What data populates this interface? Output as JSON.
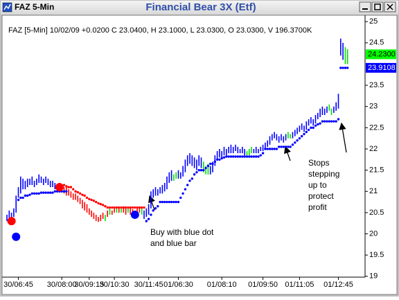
{
  "window_title": "FAZ 5-Min",
  "chart_data": {
    "type": "ohlc",
    "title": "Financial Bear 3X (Etf)",
    "subtitle": "FAZ [5-Min] 10/02/09 +0.0200 C 23.0400, H 23.1000, L 23.0300, O 23.0300, V 196.3700K",
    "categories": [
      null,
      null,
      null,
      null,
      null,
      "30/06:45",
      null,
      null,
      null,
      null,
      null,
      null,
      null,
      null,
      null,
      null,
      null,
      null,
      null,
      null,
      null,
      null,
      null,
      null,
      "30/08:00",
      null,
      null,
      null,
      null,
      null,
      null,
      null,
      null,
      null,
      null,
      null,
      "30/09:15",
      null,
      null,
      null,
      null,
      null,
      null,
      null,
      null,
      null,
      null,
      "30/10:30",
      null,
      null,
      null,
      null,
      null,
      null,
      null,
      null,
      null,
      null,
      null,
      null,
      null,
      null,
      "30/11:45",
      null,
      null,
      null,
      null,
      null,
      null,
      null,
      null,
      null,
      null,
      null,
      null,
      "01/06:30",
      null,
      null,
      null,
      null,
      null,
      null,
      null,
      null,
      null,
      null,
      null,
      null,
      null,
      null,
      null,
      null,
      null,
      null,
      "01/08:10",
      null,
      null,
      null,
      null,
      null,
      null,
      null,
      null,
      null,
      null,
      null,
      null,
      null,
      null,
      null,
      null,
      null,
      "01/09:50",
      null,
      null,
      null,
      null,
      null,
      null,
      null,
      null,
      null,
      null,
      null,
      null,
      null,
      null,
      null,
      "01/11:05",
      null,
      null,
      null,
      null,
      null,
      null,
      null,
      null,
      null,
      null,
      null,
      null,
      null,
      null,
      null,
      null,
      "01/12:45",
      null,
      null,
      null,
      null
    ],
    "high": [
      20.45,
      20.55,
      20.5,
      20.6,
      20.9,
      21.1,
      21.35,
      21.3,
      21.25,
      21.3,
      21.3,
      21.35,
      21.25,
      21.3,
      21.4,
      21.35,
      21.3,
      21.35,
      21.3,
      21.25,
      21.25,
      21.2,
      21.15,
      21.2,
      21.15,
      21.1,
      21.1,
      21.05,
      21,
      20.95,
      20.95,
      20.9,
      20.85,
      20.8,
      20.75,
      20.7,
      20.6,
      20.55,
      20.5,
      20.45,
      20.4,
      20.45,
      20.5,
      20.45,
      20.55,
      20.6,
      20.55,
      20.6,
      20.6,
      20.62,
      20.6,
      20.65,
      20.6,
      20.62,
      20.6,
      20.58,
      20.55,
      20.6,
      20.62,
      20.6,
      20.55,
      20.6,
      20.7,
      21,
      21.05,
      21.1,
      21.05,
      21.1,
      21.15,
      21.2,
      21.35,
      21.45,
      21.5,
      21.4,
      21.45,
      21.5,
      21.45,
      21.6,
      21.75,
      21.85,
      21.9,
      21.85,
      21.8,
      21.75,
      21.85,
      21.8,
      21.7,
      21.6,
      21.65,
      21.6,
      21.7,
      21.85,
      21.95,
      22,
      21.95,
      22.05,
      22,
      22.05,
      22.1,
      22.05,
      22.1,
      22.05,
      22,
      22.05,
      22,
      21.95,
      22,
      22.05,
      22,
      22.05,
      22,
      22.05,
      22.1,
      22.15,
      22.2,
      22.3,
      22.35,
      22.4,
      22.35,
      22.3,
      22.35,
      22.3,
      22.35,
      22.4,
      22.35,
      22.4,
      22.45,
      22.5,
      22.55,
      22.6,
      22.55,
      22.65,
      22.7,
      22.75,
      22.7,
      22.8,
      22.85,
      22.95,
      23,
      22.95,
      23,
      23.05,
      22.95,
      23,
      23.1,
      23.3,
      24.6,
      24.5,
      24.4,
      24.35
    ],
    "low": [
      20.3,
      20.35,
      20.3,
      20.4,
      20.5,
      20.85,
      20.95,
      21.05,
      21.05,
      21.1,
      21.15,
      21.15,
      21.1,
      21.15,
      21.2,
      21.2,
      21.15,
      21.2,
      21.15,
      21.1,
      21.1,
      21.05,
      21,
      21.05,
      21,
      20.95,
      20.9,
      20.9,
      20.85,
      20.8,
      20.8,
      20.75,
      20.7,
      20.6,
      20.55,
      20.5,
      20.45,
      20.4,
      20.35,
      20.3,
      20.28,
      20.3,
      20.35,
      20.3,
      20.4,
      20.45,
      20.45,
      20.5,
      20.5,
      20.5,
      20.5,
      20.5,
      20.45,
      20.5,
      20.45,
      20.45,
      20.4,
      20.45,
      20.5,
      20.45,
      20.35,
      20.4,
      20.45,
      20.6,
      20.85,
      20.9,
      20.9,
      20.95,
      20.95,
      21,
      21.05,
      21.2,
      21.25,
      21.25,
      21.3,
      21.3,
      21.3,
      21.35,
      21.45,
      21.6,
      21.65,
      21.6,
      21.55,
      21.5,
      21.6,
      21.55,
      21.45,
      21.4,
      21.4,
      21.4,
      21.45,
      21.6,
      21.75,
      21.8,
      21.8,
      21.85,
      21.85,
      21.9,
      21.9,
      21.9,
      21.95,
      21.9,
      21.9,
      21.9,
      21.85,
      21.85,
      21.85,
      21.9,
      21.9,
      21.9,
      21.9,
      21.95,
      21.95,
      22,
      22.05,
      22.1,
      22.2,
      22.25,
      22.2,
      22.15,
      22.2,
      22.15,
      22.2,
      22.25,
      22.25,
      22.25,
      22.3,
      22.35,
      22.4,
      22.45,
      22.4,
      22.45,
      22.55,
      22.6,
      22.55,
      22.6,
      22.7,
      22.75,
      22.8,
      22.8,
      22.85,
      22.9,
      22.8,
      22.85,
      22.9,
      22.95,
      24.2,
      24.1,
      24,
      24
    ],
    "palette": [
      "#0000ff",
      "#00e000",
      "#ff0000"
    ],
    "bar_color": [
      0,
      0,
      0,
      0,
      0,
      0,
      0,
      0,
      0,
      0,
      0,
      0,
      0,
      0,
      0,
      0,
      0,
      0,
      0,
      0,
      0,
      0,
      0,
      0,
      0,
      2,
      2,
      2,
      2,
      2,
      2,
      2,
      2,
      2,
      2,
      2,
      2,
      2,
      2,
      2,
      2,
      2,
      2,
      1,
      2,
      1,
      2,
      2,
      1,
      2,
      1,
      2,
      2,
      1,
      2,
      2,
      1,
      2,
      2,
      1,
      0,
      0,
      0,
      0,
      0,
      0,
      0,
      0,
      0,
      0,
      0,
      0,
      0,
      1,
      1,
      0,
      0,
      0,
      0,
      0,
      0,
      0,
      0,
      0,
      0,
      0,
      1,
      1,
      1,
      0,
      0,
      0,
      0,
      0,
      0,
      0,
      0,
      0,
      0,
      0,
      0,
      0,
      0,
      0,
      0,
      1,
      1,
      1,
      0,
      0,
      0,
      0,
      0,
      0,
      0,
      0,
      0,
      0,
      0,
      0,
      0,
      0,
      0,
      1,
      1,
      0,
      0,
      0,
      0,
      0,
      0,
      0,
      0,
      0,
      0,
      0,
      0,
      0,
      0,
      0,
      0,
      1,
      1,
      0,
      0,
      0,
      0,
      0,
      1,
      1
    ],
    "stops": [
      {
        "color": "#0000ff",
        "values": [
          null,
          null,
          null,
          null,
          null,
          20.8,
          20.85,
          20.85,
          20.9,
          20.9,
          20.92,
          20.95,
          20.95,
          20.95,
          20.95,
          20.97,
          20.97,
          20.97,
          20.97,
          20.97,
          20.97,
          21,
          21,
          21,
          21,
          21,
          21,
          null,
          null,
          null,
          null,
          null,
          null,
          null,
          null,
          null,
          null,
          null,
          null,
          null,
          null,
          null,
          null,
          null,
          null,
          null,
          null,
          null,
          null,
          null,
          null,
          null,
          null,
          null,
          null,
          null,
          null,
          null,
          null,
          null,
          null,
          20.3,
          20.35,
          20.45,
          20.55,
          20.6,
          20.65,
          20.75,
          20.75,
          20.75,
          20.75,
          20.75,
          20.75,
          20.75,
          20.75,
          20.75,
          20.85,
          20.95,
          21.05,
          21.15,
          21.25,
          21.3,
          21.4,
          21.45,
          21.5,
          21.5,
          21.5,
          21.55,
          21.6,
          21.65,
          21.65,
          21.7,
          21.75,
          21.75,
          21.78,
          21.8,
          21.82,
          21.82,
          21.82,
          21.82,
          21.82,
          21.82,
          21.82,
          21.82,
          21.82,
          21.82,
          21.82,
          21.82,
          21.82,
          21.82,
          21.82,
          21.85,
          21.9,
          22,
          22,
          22,
          22,
          22,
          22,
          22.05,
          22.05,
          22.05,
          22.05,
          22.05,
          22.05,
          22.1,
          22.15,
          22.2,
          22.25,
          22.3,
          22.35,
          22.4,
          22.45,
          22.5,
          22.5,
          22.55,
          22.58,
          22.6,
          22.65,
          22.65,
          22.65,
          22.65,
          22.65,
          22.65,
          22.65,
          22.7,
          23.91,
          23.91,
          23.91,
          23.9108
        ]
      },
      {
        "color": "#ff0000",
        "values": [
          null,
          null,
          null,
          null,
          null,
          null,
          null,
          null,
          null,
          null,
          null,
          null,
          null,
          null,
          null,
          null,
          null,
          null,
          null,
          null,
          null,
          null,
          null,
          null,
          null,
          21.15,
          21.12,
          21.1,
          21.1,
          21.05,
          21,
          20.98,
          20.95,
          20.92,
          20.9,
          20.85,
          20.82,
          20.8,
          20.78,
          20.75,
          20.72,
          20.7,
          20.68,
          20.65,
          20.62,
          20.62,
          20.62,
          20.62,
          20.62,
          20.62,
          20.62,
          20.62,
          20.62,
          20.62,
          20.62,
          20.62,
          20.62,
          20.62,
          20.62,
          20.62,
          20.62,
          null,
          null,
          null,
          null,
          null,
          null,
          null,
          null,
          null,
          null,
          null,
          null,
          null,
          null,
          null,
          null,
          null,
          null,
          null,
          null,
          null,
          null,
          null,
          null,
          null,
          null,
          null,
          null,
          null,
          null,
          null,
          null,
          null,
          null,
          null,
          null,
          null,
          null,
          null,
          null,
          null,
          null,
          null,
          null,
          null,
          null,
          null,
          null,
          null,
          null,
          null,
          null,
          null,
          null,
          null,
          null,
          null,
          null,
          null,
          null,
          null,
          null,
          null,
          null,
          null,
          null,
          null,
          null,
          null,
          null,
          null,
          null,
          null,
          null,
          null,
          null,
          null,
          null,
          null,
          null,
          null,
          null,
          null,
          null,
          null,
          null,
          null,
          null,
          null
        ]
      }
    ],
    "markers": [
      {
        "bar": 2,
        "value": 20.3,
        "color": "#ff0000"
      },
      {
        "bar": 4,
        "value": 19.93,
        "color": "#0000ff"
      },
      {
        "bar": 23,
        "value": 21.1,
        "color": "#ff0000"
      },
      {
        "bar": 56,
        "value": 20.45,
        "color": "#0000ff"
      }
    ],
    "ylim": [
      18.98,
      25.15
    ],
    "yticks": [
      19,
      19.5,
      20,
      20.5,
      21,
      21.5,
      22,
      22.5,
      23,
      23.5,
      24.5,
      25
    ],
    "price_labels": [
      {
        "value": 24.23,
        "label": "24.2300",
        "color": "#00ff00",
        "text_color": "#000000"
      },
      {
        "value": 23.9108,
        "label": "23.9108",
        "color": "#0000ff",
        "text_color": "#ffffff"
      }
    ],
    "annotations": [
      {
        "lines": [
          "Buy with blue dot",
          "and blue bar"
        ]
      },
      {
        "lines": [
          "Stops",
          "stepping",
          "up to",
          "protect",
          "profit"
        ]
      }
    ]
  }
}
